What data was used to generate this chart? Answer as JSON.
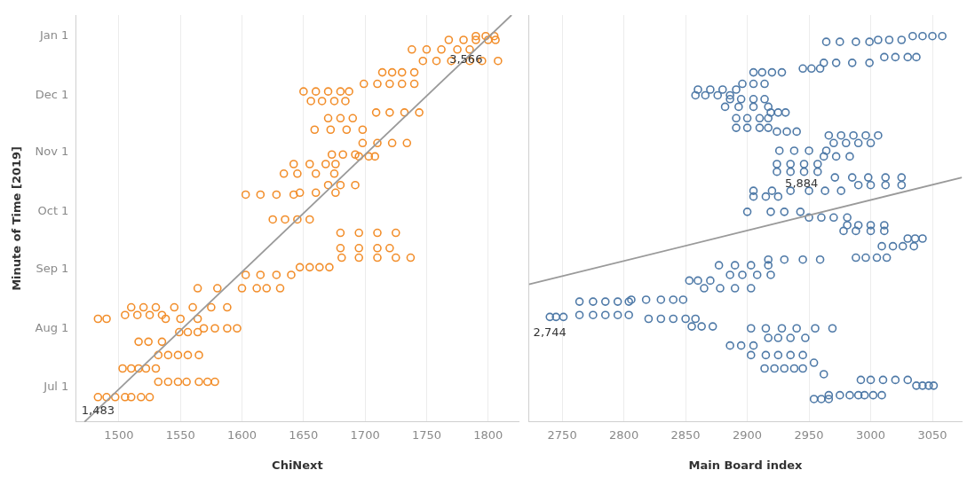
{
  "chart_data": [
    {
      "type": "scatter",
      "orientation": "horizontal",
      "xlabel": "ChiNext",
      "ylabel": "Minute of Time [2019]",
      "xlim": [
        1465,
        1825
      ],
      "xticks": [
        1500,
        1550,
        1600,
        1650,
        1700,
        1750,
        1800
      ],
      "ylim": [
        "2019-06-13",
        "2020-01-12"
      ],
      "yticks": [
        {
          "value": "2019-07-01",
          "label": "Jul 1"
        },
        {
          "value": "2019-08-01",
          "label": "Aug 1"
        },
        {
          "value": "2019-09-01",
          "label": "Sep 1"
        },
        {
          "value": "2019-10-01",
          "label": "Oct 1"
        },
        {
          "value": "2019-11-01",
          "label": "Nov 1"
        },
        {
          "value": "2019-12-01",
          "label": "Dec 1"
        },
        {
          "value": "2020-01-01",
          "label": "Jan 1"
        }
      ],
      "grid": "x",
      "annotations": [
        {
          "text": "1,483",
          "x": 1483,
          "y": "2019-06-25"
        },
        {
          "text": "3,566",
          "x": 1782,
          "y": "2019-12-26"
        }
      ],
      "series": [
        {
          "type": "scatter",
          "marker": "circle",
          "color": "#f28e2b",
          "values": [
            1483,
            1490,
            1497,
            1505,
            1510,
            1518,
            1525,
            1532,
            1540,
            1548,
            1555,
            1565,
            1572,
            1578,
            1503,
            1510,
            1516,
            1522,
            1530,
            1532,
            1540,
            1548,
            1556,
            1565,
            1516,
            1524,
            1535,
            1549,
            1556,
            1564,
            1569,
            1578,
            1588,
            1596,
            1483,
            1490,
            1538,
            1550,
            1564,
            1505,
            1515,
            1525,
            1535,
            1510,
            1520,
            1530,
            1545,
            1560,
            1575,
            1588,
            1564,
            1580,
            1600,
            1612,
            1620,
            1631,
            1603,
            1615,
            1628,
            1640,
            1647,
            1655,
            1663,
            1671,
            1681,
            1695,
            1710,
            1725,
            1737,
            1680,
            1695,
            1710,
            1720,
            1680,
            1695,
            1710,
            1725,
            1625,
            1635,
            1645,
            1655,
            1603,
            1615,
            1628,
            1642,
            1647,
            1660,
            1676,
            1670,
            1680,
            1692,
            1634,
            1645,
            1660,
            1675,
            1642,
            1655,
            1668,
            1676,
            1673,
            1682,
            1692,
            1695,
            1703,
            1708,
            1698,
            1710,
            1722,
            1734,
            1659,
            1672,
            1685,
            1698,
            1670,
            1680,
            1690,
            1709,
            1720,
            1732,
            1744,
            1656,
            1665,
            1675,
            1684,
            1650,
            1660,
            1670,
            1680,
            1687,
            1699,
            1710,
            1720,
            1730,
            1740,
            1714,
            1722,
            1730,
            1740,
            1747,
            1758,
            1770,
            1785,
            1795,
            1808,
            1738,
            1750,
            1762,
            1775,
            1785,
            1768,
            1780,
            1790,
            1800,
            1806,
            1790,
            1798,
            1805
          ],
          "x": [
            "2019-06-26",
            "2019-06-26",
            "2019-06-26",
            "2019-06-26",
            "2019-06-26",
            "2019-06-26",
            "2019-06-26",
            "2019-07-04",
            "2019-07-04",
            "2019-07-04",
            "2019-07-04",
            "2019-07-04",
            "2019-07-04",
            "2019-07-04",
            "2019-07-11",
            "2019-07-11",
            "2019-07-11",
            "2019-07-11",
            "2019-07-11",
            "2019-07-18",
            "2019-07-18",
            "2019-07-18",
            "2019-07-18",
            "2019-07-18",
            "2019-07-25",
            "2019-07-25",
            "2019-07-25",
            "2019-07-30",
            "2019-07-30",
            "2019-07-30",
            "2019-08-01",
            "2019-08-01",
            "2019-08-01",
            "2019-08-01",
            "2019-08-06",
            "2019-08-06",
            "2019-08-06",
            "2019-08-06",
            "2019-08-06",
            "2019-08-08",
            "2019-08-08",
            "2019-08-08",
            "2019-08-08",
            "2019-08-12",
            "2019-08-12",
            "2019-08-12",
            "2019-08-12",
            "2019-08-12",
            "2019-08-12",
            "2019-08-12",
            "2019-08-22",
            "2019-08-22",
            "2019-08-22",
            "2019-08-22",
            "2019-08-22",
            "2019-08-22",
            "2019-08-29",
            "2019-08-29",
            "2019-08-29",
            "2019-08-29",
            "2019-09-02",
            "2019-09-02",
            "2019-09-02",
            "2019-09-02",
            "2019-09-07",
            "2019-09-07",
            "2019-09-07",
            "2019-09-07",
            "2019-09-07",
            "2019-09-12",
            "2019-09-12",
            "2019-09-12",
            "2019-09-12",
            "2019-09-20",
            "2019-09-20",
            "2019-09-20",
            "2019-09-20",
            "2019-09-27",
            "2019-09-27",
            "2019-09-27",
            "2019-09-27",
            "2019-10-10",
            "2019-10-10",
            "2019-10-10",
            "2019-10-10",
            "2019-10-11",
            "2019-10-11",
            "2019-10-11",
            "2019-10-15",
            "2019-10-15",
            "2019-10-15",
            "2019-10-21",
            "2019-10-21",
            "2019-10-21",
            "2019-10-21",
            "2019-10-26",
            "2019-10-26",
            "2019-10-26",
            "2019-10-26",
            "2019-10-31",
            "2019-10-31",
            "2019-10-31",
            "2019-10-30",
            "2019-10-30",
            "2019-10-30",
            "2019-11-06",
            "2019-11-06",
            "2019-11-06",
            "2019-11-06",
            "2019-11-13",
            "2019-11-13",
            "2019-11-13",
            "2019-11-13",
            "2019-11-19",
            "2019-11-19",
            "2019-11-19",
            "2019-11-22",
            "2019-11-22",
            "2019-11-22",
            "2019-11-22",
            "2019-11-28",
            "2019-11-28",
            "2019-11-28",
            "2019-11-28",
            "2019-12-03",
            "2019-12-03",
            "2019-12-03",
            "2019-12-03",
            "2019-12-03",
            "2019-12-07",
            "2019-12-07",
            "2019-12-07",
            "2019-12-07",
            "2019-12-07",
            "2019-12-13",
            "2019-12-13",
            "2019-12-13",
            "2019-12-13",
            "2019-12-19",
            "2019-12-19",
            "2019-12-19",
            "2019-12-19",
            "2019-12-19",
            "2019-12-19",
            "2019-12-25",
            "2019-12-25",
            "2019-12-25",
            "2019-12-25",
            "2019-12-25",
            "2019-12-30",
            "2019-12-30",
            "2019-12-30",
            "2019-12-30",
            "2019-12-30",
            "2020-01-01",
            "2020-01-01",
            "2020-01-01"
          ]
        },
        {
          "type": "line",
          "marker": "none",
          "color": "#9a9a9a",
          "values": [
            1472,
            1819
          ],
          "x": [
            "2019-06-13",
            "2020-01-12"
          ]
        }
      ]
    },
    {
      "type": "scatter",
      "orientation": "horizontal",
      "xlabel": "Main Board index",
      "xlim": [
        2723,
        3074
      ],
      "xticks": [
        2750,
        2800,
        2850,
        2900,
        2950,
        3000,
        3050
      ],
      "ylim": [
        "2019-06-13",
        "2020-01-12"
      ],
      "tick_labels": "x",
      "grid": "x",
      "annotations": [
        {
          "text": "2,744",
          "x": 2740,
          "y": "2019-08-05"
        },
        {
          "text": "5,884",
          "x": 2944,
          "y": "2019-10-22"
        }
      ],
      "series": [
        {
          "type": "scatter",
          "marker": "circle",
          "color": "#4e79a7",
          "values": [
            3034,
            3042,
            3050,
            3058,
            3006,
            3015,
            3025,
            2964,
            2975,
            2988,
            2999,
            3011,
            3020,
            3030,
            3037,
            2962,
            2972,
            2985,
            2999,
            2945,
            2952,
            2959,
            2905,
            2912,
            2920,
            2928,
            2896,
            2905,
            2914,
            2860,
            2870,
            2880,
            2891,
            2858,
            2866,
            2876,
            2886,
            2886,
            2895,
            2905,
            2914,
            2882,
            2893,
            2905,
            2917,
            2919,
            2925,
            2931,
            2891,
            2900,
            2910,
            2917,
            2891,
            2900,
            2910,
            2917,
            2924,
            2932,
            2940,
            2966,
            2976,
            2986,
            2996,
            3006,
            2970,
            2980,
            2990,
            3000,
            2926,
            2938,
            2950,
            2964,
            2962,
            2972,
            2983,
            2924,
            2935,
            2946,
            2957,
            2924,
            2935,
            2946,
            2957,
            2971,
            2985,
            2998,
            3012,
            3025,
            2990,
            3000,
            3012,
            3025,
            2905,
            2920,
            2935,
            2950,
            2963,
            2976,
            2905,
            2915,
            2925,
            2900,
            2919,
            2930,
            2943,
            2950,
            2960,
            2970,
            2981,
            2981,
            2990,
            3000,
            3011,
            2978,
            2988,
            3000,
            3011,
            3030,
            3036,
            3042,
            3009,
            3018,
            3026,
            3035,
            2988,
            2996,
            3005,
            3013,
            2917,
            2930,
            2945,
            2959,
            2877,
            2890,
            2903,
            2917,
            2886,
            2896,
            2908,
            2919,
            2853,
            2860,
            2870,
            2865,
            2878,
            2890,
            2903,
            2806,
            2818,
            2830,
            2840,
            2848,
            2764,
            2775,
            2785,
            2795,
            2804,
            2764,
            2775,
            2785,
            2795,
            2804,
            2740,
            2745,
            2751,
            2820,
            2830,
            2840,
            2850,
            2858,
            2855,
            2863,
            2872,
            2903,
            2915,
            2928,
            2940,
            2955,
            2969,
            2917,
            2925,
            2935,
            2947,
            2886,
            2895,
            2905,
            2903,
            2915,
            2925,
            2935,
            2945,
            2954,
            2914,
            2922,
            2930,
            2938,
            2945,
            2962,
            2992,
            3000,
            3010,
            3020,
            3030,
            3037,
            3042,
            3047,
            3051,
            2966,
            2975,
            2983,
            2990,
            2995,
            3002,
            3009,
            2954,
            2960,
            2966
          ],
          "x": [
            "2020-01-01",
            "2020-01-01",
            "2020-01-01",
            "2020-01-01",
            "2019-12-30",
            "2019-12-30",
            "2019-12-30",
            "2019-12-29",
            "2019-12-29",
            "2019-12-29",
            "2019-12-29",
            "2019-12-21",
            "2019-12-21",
            "2019-12-21",
            "2019-12-21",
            "2019-12-18",
            "2019-12-18",
            "2019-12-18",
            "2019-12-18",
            "2019-12-15",
            "2019-12-15",
            "2019-12-15",
            "2019-12-13",
            "2019-12-13",
            "2019-12-13",
            "2019-12-13",
            "2019-12-07",
            "2019-12-07",
            "2019-12-07",
            "2019-12-04",
            "2019-12-04",
            "2019-12-04",
            "2019-12-04",
            "2019-12-01",
            "2019-12-01",
            "2019-12-01",
            "2019-12-01",
            "2019-11-29",
            "2019-11-29",
            "2019-11-29",
            "2019-11-29",
            "2019-11-25",
            "2019-11-25",
            "2019-11-25",
            "2019-11-25",
            "2019-11-22",
            "2019-11-22",
            "2019-11-22",
            "2019-11-19",
            "2019-11-19",
            "2019-11-19",
            "2019-11-19",
            "2019-11-14",
            "2019-11-14",
            "2019-11-14",
            "2019-11-14",
            "2019-11-12",
            "2019-11-12",
            "2019-11-12",
            "2019-11-10",
            "2019-11-10",
            "2019-11-10",
            "2019-11-10",
            "2019-11-10",
            "2019-11-06",
            "2019-11-06",
            "2019-11-06",
            "2019-11-06",
            "2019-11-02",
            "2019-11-02",
            "2019-11-02",
            "2019-11-02",
            "2019-10-30",
            "2019-10-30",
            "2019-10-30",
            "2019-10-26",
            "2019-10-26",
            "2019-10-26",
            "2019-10-26",
            "2019-10-22",
            "2019-10-22",
            "2019-10-22",
            "2019-10-22",
            "2019-10-19",
            "2019-10-19",
            "2019-10-19",
            "2019-10-19",
            "2019-10-19",
            "2019-10-15",
            "2019-10-15",
            "2019-10-15",
            "2019-10-15",
            "2019-10-12",
            "2019-10-12",
            "2019-10-12",
            "2019-10-12",
            "2019-10-12",
            "2019-10-12",
            "2019-10-09",
            "2019-10-09",
            "2019-10-09",
            "2019-10-01",
            "2019-10-01",
            "2019-10-01",
            "2019-10-01",
            "2019-09-28",
            "2019-09-28",
            "2019-09-28",
            "2019-09-28",
            "2019-09-24",
            "2019-09-24",
            "2019-09-24",
            "2019-09-24",
            "2019-09-21",
            "2019-09-21",
            "2019-09-21",
            "2019-09-21",
            "2019-09-17",
            "2019-09-17",
            "2019-09-17",
            "2019-09-13",
            "2019-09-13",
            "2019-09-13",
            "2019-09-13",
            "2019-09-07",
            "2019-09-07",
            "2019-09-07",
            "2019-09-07",
            "2019-09-06",
            "2019-09-06",
            "2019-09-06",
            "2019-09-06",
            "2019-09-03",
            "2019-09-03",
            "2019-09-03",
            "2019-09-03",
            "2019-08-29",
            "2019-08-29",
            "2019-08-29",
            "2019-08-29",
            "2019-08-26",
            "2019-08-26",
            "2019-08-26",
            "2019-08-22",
            "2019-08-22",
            "2019-08-22",
            "2019-08-22",
            "2019-08-16",
            "2019-08-16",
            "2019-08-16",
            "2019-08-16",
            "2019-08-16",
            "2019-08-15",
            "2019-08-15",
            "2019-08-15",
            "2019-08-15",
            "2019-08-15",
            "2019-08-08",
            "2019-08-08",
            "2019-08-08",
            "2019-08-08",
            "2019-08-08",
            "2019-08-07",
            "2019-08-07",
            "2019-08-07",
            "2019-08-06",
            "2019-08-06",
            "2019-08-06",
            "2019-08-06",
            "2019-08-06",
            "2019-08-02",
            "2019-08-02",
            "2019-08-02",
            "2019-08-01",
            "2019-08-01",
            "2019-08-01",
            "2019-08-01",
            "2019-08-01",
            "2019-08-01",
            "2019-07-27",
            "2019-07-27",
            "2019-07-27",
            "2019-07-27",
            "2019-07-23",
            "2019-07-23",
            "2019-07-23",
            "2019-07-18",
            "2019-07-18",
            "2019-07-18",
            "2019-07-18",
            "2019-07-18",
            "2019-07-14",
            "2019-07-11",
            "2019-07-11",
            "2019-07-11",
            "2019-07-11",
            "2019-07-11",
            "2019-07-08",
            "2019-07-05",
            "2019-07-05",
            "2019-07-05",
            "2019-07-05",
            "2019-07-05",
            "2019-07-02",
            "2019-07-02",
            "2019-07-02",
            "2019-07-02",
            "2019-06-27",
            "2019-06-27",
            "2019-06-27",
            "2019-06-27",
            "2019-06-27",
            "2019-06-27",
            "2019-06-27",
            "2019-06-25",
            "2019-06-25",
            "2019-06-25"
          ]
        },
        {
          "type": "line",
          "marker": "none",
          "color": "#9a9a9a",
          "values": [
            2723,
            3074
          ],
          "x": [
            "2019-08-24",
            "2019-10-19"
          ]
        }
      ]
    }
  ]
}
